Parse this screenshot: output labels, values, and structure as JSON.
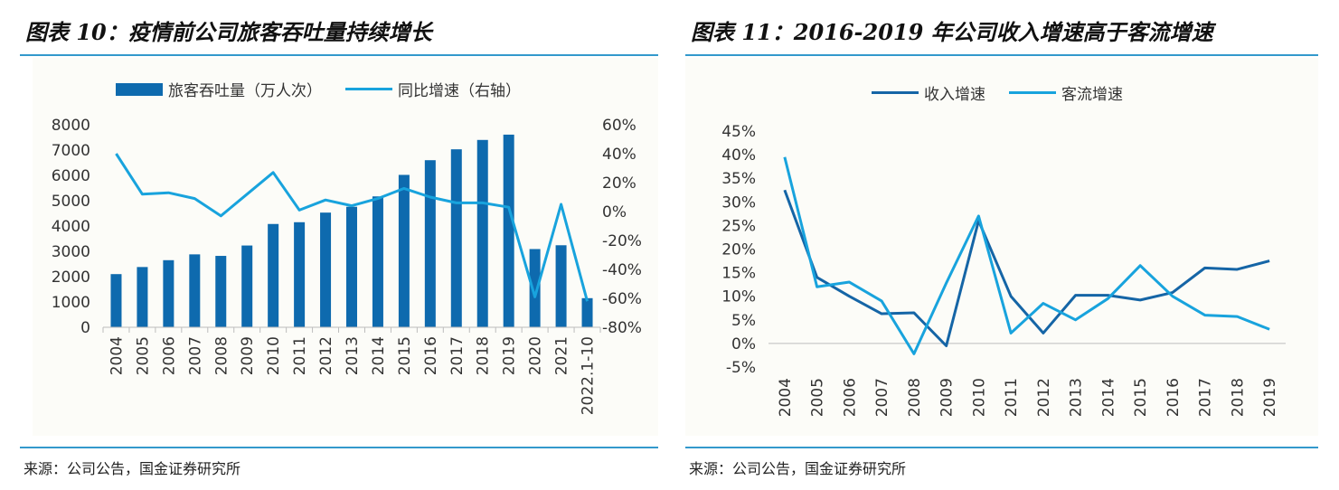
{
  "left": {
    "title": "图表 10：疫情前公司旅客吞吐量持续增长",
    "source": "来源：公司公告，国金证券研究所"
  },
  "right": {
    "title": "图表 11：2016-2019 年公司收入增速高于客流增速",
    "source": "来源：公司公告，国金证券研究所"
  },
  "colors": {
    "bar": "#0e6aae",
    "line_light": "#18a3dd",
    "line_dark": "#1565a6",
    "rule": "#3399cc"
  },
  "chart_data": [
    {
      "type": "bar+line",
      "categories": [
        "2004",
        "2005",
        "2006",
        "2007",
        "2008",
        "2009",
        "2010",
        "2011",
        "2012",
        "2013",
        "2014",
        "2015",
        "2016",
        "2017",
        "2018",
        "2019",
        "2020",
        "2021",
        "2022.1-10"
      ],
      "series": [
        {
          "name": "旅客吞吐量（万人次）",
          "axis": "left",
          "kind": "bar",
          "values": [
            2100,
            2380,
            2650,
            2880,
            2820,
            3230,
            4080,
            4150,
            4530,
            4760,
            5170,
            6020,
            6600,
            7030,
            7400,
            7610,
            3090,
            3240,
            1150
          ]
        },
        {
          "name": "同比增速（右轴）",
          "axis": "right",
          "kind": "line",
          "values": [
            40,
            12,
            13,
            9,
            -3,
            12,
            27,
            1,
            8,
            4,
            9,
            16,
            10,
            6,
            6,
            3,
            -59,
            5,
            -62
          ]
        }
      ],
      "yleft": {
        "min": 0,
        "max": 8000,
        "ticks": [
          "0",
          "1000",
          "2000",
          "3000",
          "4000",
          "5000",
          "6000",
          "7000",
          "8000"
        ]
      },
      "yright": {
        "min": -80,
        "max": 60,
        "ticks": [
          "-80%",
          "-60%",
          "-40%",
          "-20%",
          "0%",
          "20%",
          "40%",
          "60%"
        ]
      }
    },
    {
      "type": "line",
      "categories": [
        "2004",
        "2005",
        "2006",
        "2007",
        "2008",
        "2009",
        "2010",
        "2011",
        "2012",
        "2013",
        "2014",
        "2015",
        "2016",
        "2017",
        "2018",
        "2019"
      ],
      "series": [
        {
          "name": "收入增速",
          "color": "dark",
          "values": [
            32.5,
            14,
            10,
            6.3,
            6.5,
            -0.5,
            26,
            10,
            2.2,
            10.2,
            10.2,
            9.2,
            10.8,
            16,
            15.7,
            17.5
          ]
        },
        {
          "name": "客流增速",
          "color": "light",
          "values": [
            39.5,
            12,
            13,
            9,
            -2.2,
            12.8,
            27,
            2.2,
            8.5,
            5,
            9.5,
            16.5,
            10,
            6,
            5.7,
            3
          ]
        }
      ],
      "y": {
        "min": -5,
        "max": 45,
        "ticks": [
          "-5%",
          "0%",
          "5%",
          "10%",
          "15%",
          "20%",
          "25%",
          "30%",
          "35%",
          "40%",
          "45%"
        ]
      }
    }
  ]
}
